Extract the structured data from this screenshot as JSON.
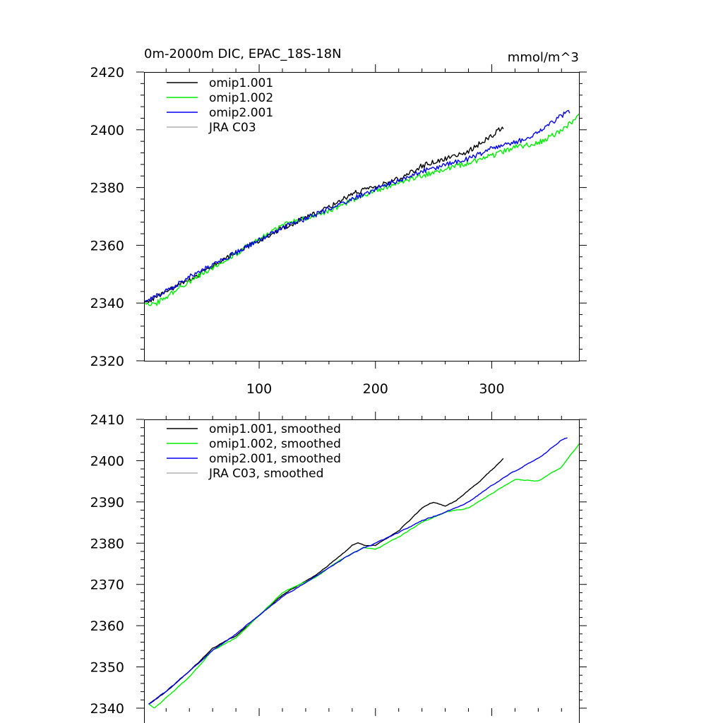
{
  "chart_data": [
    {
      "type": "line",
      "title_left": "0m-2000m DIC, EPAC_18S-18N",
      "title_right": "mmol/m^3",
      "xlim": [
        1,
        375
      ],
      "ylim": [
        2320,
        2420
      ],
      "xticks": [
        100,
        200,
        300
      ],
      "yticks": [
        2320,
        2340,
        2360,
        2380,
        2400,
        2420
      ],
      "x_tick_labels": [
        "100",
        "200",
        "300"
      ],
      "y_tick_labels": [
        "2320",
        "2340",
        "2360",
        "2380",
        "2400",
        "2420"
      ],
      "grid": false,
      "legend_position": "top-left",
      "noise_amplitude": 0.9,
      "series": [
        {
          "name": "omip1.001",
          "color": "#000000",
          "x": [
            1,
            40,
            80,
            120,
            160,
            180,
            200,
            220,
            240,
            260,
            280,
            300,
            310
          ],
          "y": [
            2340,
            2348,
            2357.5,
            2366,
            2373,
            2378,
            2380,
            2383,
            2387.5,
            2390,
            2392.5,
            2398,
            2401
          ]
        },
        {
          "name": "omip1.002",
          "color": "#00ee00",
          "x": [
            1,
            10,
            40,
            80,
            120,
            160,
            200,
            240,
            260,
            280,
            300,
            320,
            340,
            360,
            375
          ],
          "y": [
            2340.5,
            2339.5,
            2347.5,
            2357,
            2367,
            2372,
            2379,
            2384,
            2386.5,
            2388.5,
            2391,
            2394,
            2395.5,
            2399.5,
            2405
          ]
        },
        {
          "name": "omip2.001",
          "color": "#0000ee",
          "x": [
            1,
            40,
            80,
            120,
            160,
            200,
            240,
            280,
            300,
            320,
            340,
            360,
            367
          ],
          "y": [
            2340,
            2349,
            2357.5,
            2366,
            2372.5,
            2379.5,
            2385.5,
            2390,
            2393.5,
            2395.5,
            2399,
            2405,
            2406
          ]
        },
        {
          "name": "JRA C03",
          "color": "#b0b0b0",
          "x": [],
          "y": []
        }
      ]
    },
    {
      "type": "line",
      "xlim": [
        1,
        375
      ],
      "ylim": [
        2340,
        2410
      ],
      "xticks": [
        100,
        200,
        300
      ],
      "yticks": [
        2340,
        2350,
        2360,
        2370,
        2380,
        2390,
        2400,
        2410
      ],
      "y_tick_labels": [
        "2340",
        "2350",
        "2360",
        "2370",
        "2380",
        "2390",
        "2400",
        "2410"
      ],
      "grid": false,
      "legend_position": "top-left",
      "noise_amplitude": 0.25,
      "series": [
        {
          "name": "omip1.001, smoothed",
          "color": "#000000",
          "x": [
            5,
            20,
            40,
            60,
            80,
            100,
            120,
            135,
            150,
            170,
            180,
            185,
            190,
            200,
            220,
            240,
            250,
            260,
            270,
            290,
            310
          ],
          "y": [
            2341,
            2344,
            2349,
            2354.5,
            2357.5,
            2362.5,
            2367.5,
            2370,
            2372.5,
            2377,
            2379.5,
            2380,
            2379.5,
            2379.5,
            2383,
            2388.5,
            2390,
            2389,
            2390.5,
            2395,
            2400.5
          ]
        },
        {
          "name": "omip1.002, smoothed",
          "color": "#00ee00",
          "x": [
            5,
            10,
            20,
            40,
            60,
            80,
            100,
            120,
            135,
            150,
            170,
            190,
            200,
            220,
            240,
            260,
            280,
            300,
            320,
            340,
            360,
            375
          ],
          "y": [
            2341,
            2340,
            2342.5,
            2347.5,
            2354,
            2357,
            2362.5,
            2368,
            2370,
            2372,
            2376,
            2379,
            2378.5,
            2381.5,
            2385,
            2387.5,
            2388.5,
            2392,
            2395.5,
            2395,
            2398.5,
            2404
          ]
        },
        {
          "name": "omip2.001, smoothed",
          "color": "#0000ee",
          "x": [
            5,
            20,
            40,
            60,
            80,
            100,
            120,
            140,
            160,
            180,
            200,
            220,
            240,
            260,
            280,
            300,
            320,
            340,
            360,
            365
          ],
          "y": [
            2341,
            2344,
            2349,
            2354,
            2358,
            2362.5,
            2367,
            2370.5,
            2374,
            2377.5,
            2380,
            2382.5,
            2385.5,
            2387.5,
            2390,
            2394,
            2397.5,
            2400.5,
            2405,
            2405.5
          ]
        },
        {
          "name": "JRA C03, smoothed",
          "color": "#b0b0b0",
          "x": [],
          "y": []
        }
      ]
    }
  ]
}
